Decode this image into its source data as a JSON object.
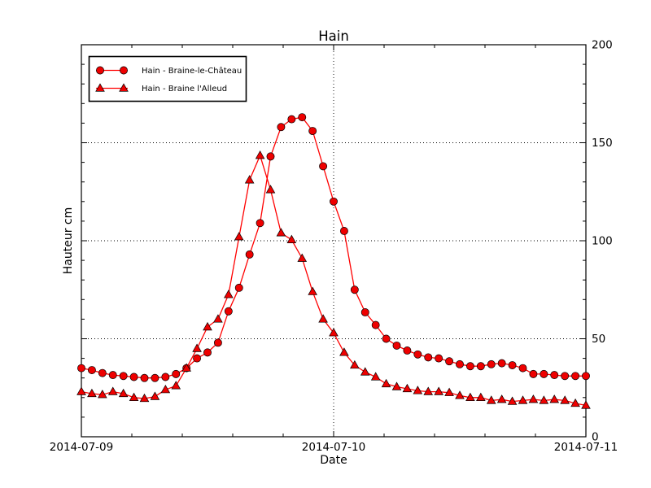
{
  "figure": {
    "title": "Hain",
    "xlabel": "Date",
    "ylabel": "Hauteur cm"
  },
  "colors": {
    "line": "#ff0000",
    "marker_fill": "#ee0000",
    "marker_edge": "#000000",
    "grid": "#000000",
    "spine": "#000000",
    "text": "#000000",
    "background": "#ffffff",
    "legend_background": "#ffffff",
    "legend_border": "#000000"
  },
  "chart_data": {
    "type": "line",
    "title": "Hain",
    "xlabel": "Date",
    "ylabel": "Hauteur cm",
    "x_unit": "hours since 2014-07-09 00:00",
    "xlim": [
      0,
      48
    ],
    "ylim": [
      0,
      200
    ],
    "x_major_ticks": [
      0,
      24,
      48
    ],
    "x_tick_labels": [
      "2014-07-09",
      "2014-07-10",
      "2014-07-11"
    ],
    "x_minor_tick_step_hours": 4.8,
    "y_major_ticks": [
      0,
      50,
      100,
      150,
      200
    ],
    "y_tick_labels": [
      "0",
      "50",
      "100",
      "150",
      "200"
    ],
    "y_minor_tick_step": 10,
    "y_tick_side": "right",
    "grid": {
      "on": true,
      "style": "dotted",
      "y_values": [
        50,
        100,
        150
      ],
      "x_values": [
        24
      ]
    },
    "legend_position": "upper-left",
    "x": [
      0,
      1,
      2,
      3,
      4,
      5,
      6,
      7,
      8,
      9,
      10,
      11,
      12,
      13,
      14,
      15,
      16,
      17,
      18,
      19,
      20,
      21,
      22,
      23,
      24,
      25,
      26,
      27,
      28,
      29,
      30,
      31,
      32,
      33,
      34,
      35,
      36,
      37,
      38,
      39,
      40,
      41,
      42,
      43,
      44,
      45,
      46,
      47,
      48
    ],
    "series": [
      {
        "name": "Hain - Braine-le-Château",
        "marker": "circle",
        "values": [
          35,
          34,
          32.5,
          31.5,
          31,
          30.5,
          30,
          30,
          30.5,
          32,
          35,
          40,
          43,
          48,
          64,
          76,
          93,
          109,
          143,
          158,
          162,
          163,
          156,
          138,
          120,
          105,
          75,
          63.5,
          57,
          50,
          46.5,
          44,
          42,
          40.5,
          40,
          38.5,
          37,
          36,
          36,
          37,
          37.5,
          36.5,
          35,
          32,
          32,
          31.5,
          31,
          31,
          31
        ]
      },
      {
        "name": "Hain - Braine l'Alleud",
        "marker": "triangle",
        "values": [
          23,
          22,
          21.5,
          23,
          22,
          20,
          19.5,
          20.5,
          24,
          26,
          35,
          45,
          56,
          60,
          72.5,
          102,
          131,
          143.5,
          126,
          104,
          100.5,
          91,
          74,
          60,
          53,
          43,
          36.5,
          33,
          30.5,
          27,
          25.5,
          24.5,
          23.5,
          23,
          23,
          22.5,
          21,
          20,
          20,
          18.5,
          19,
          18,
          18.5,
          19,
          18.5,
          19,
          18.5,
          17,
          16
        ]
      }
    ]
  }
}
